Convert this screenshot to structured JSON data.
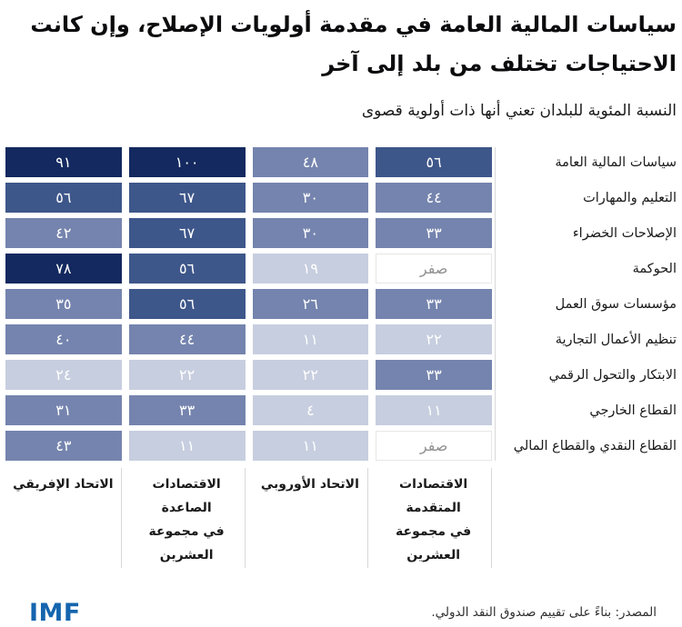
{
  "title": "سياسات المالية العامة في مقدمة أولويات الإصلاح، وإن كانت الاحتياجات تختلف من بلد إلى آخر",
  "subtitle": "النسبة المئوية للبلدان تعني أنها ذات أولوية قصوى",
  "footer": {
    "source": "المصدر: بناءً على تقييم صندوق النقد الدولي.",
    "logo": "IMF"
  },
  "zero_label": "صفر",
  "colors": {
    "q1": "#c7cedf",
    "q2": "#7584ae",
    "q3": "#3e578a",
    "q4": "#13295f",
    "zero_bg": "#ffffff",
    "zero_text": "#919191",
    "zero_border": "#e7e7e7",
    "cell_text": "#ffffff",
    "title_text": "#0b0b0d",
    "label_text": "#1a1a1a",
    "axis_line": "#d8d8d8",
    "source_text": "#2e2e2e",
    "logo_blue": "#1565ae"
  },
  "chart_data": {
    "type": "heatmap",
    "unit": "percent of countries",
    "numeral_system": "arabic-indic",
    "direction": "rtl",
    "columns_right_to_left": [
      "الاقتصادات المتقدمة في مجموعة العشرين",
      "الاتحاد الأوروبي",
      "الاقتصادات الصاعدة في مجموعة العشرين",
      "الاتحاد الإفريقي"
    ],
    "column_label_lines": [
      [
        "الاقتصادات المتقدمة",
        "في مجموعة العشرين"
      ],
      [
        "الاتحاد الأوروبي"
      ],
      [
        "الاقتصادات الصاعدة",
        "في مجموعة العشرين"
      ],
      [
        "الاتحاد الإفريقي"
      ]
    ],
    "rows": [
      "سياسات المالية العامة",
      "التعليم والمهارات",
      "الإصلاحات الخضراء",
      "الحوكمة",
      "مؤسسات سوق العمل",
      "تنظيم الأعمال التجارية",
      "الابتكار والتحول الرقمي",
      "القطاع الخارجي",
      "القطاع النقدي والقطاع المالي"
    ],
    "values": [
      [
        56,
        48,
        100,
        91
      ],
      [
        44,
        30,
        67,
        56
      ],
      [
        33,
        30,
        67,
        42
      ],
      [
        0,
        19,
        56,
        78
      ],
      [
        33,
        26,
        56,
        35
      ],
      [
        22,
        11,
        44,
        40
      ],
      [
        33,
        22,
        22,
        24
      ],
      [
        11,
        4,
        33,
        31
      ],
      [
        0,
        11,
        11,
        43
      ]
    ],
    "value_range": [
      0,
      100
    ],
    "color_scale": {
      "zero": "white cell with gray word label",
      "buckets": [
        [
          1,
          24
        ],
        [
          25,
          49
        ],
        [
          50,
          74
        ],
        [
          75,
          100
        ]
      ],
      "note": "darker navy = higher share of countries"
    }
  }
}
